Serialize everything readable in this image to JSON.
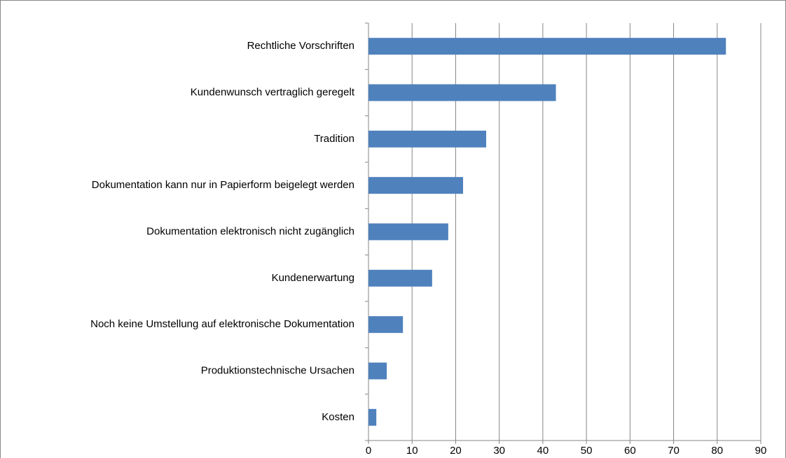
{
  "chart_data": {
    "type": "bar",
    "orientation": "horizontal",
    "categories": [
      "Rechtliche Vorschriften",
      "Kundenwunsch vertraglich geregelt",
      "Tradition",
      "Dokumentation kann nur in Papierform beigelegt werden",
      "Dokumentation elektronisch nicht zugänglich",
      "Kundenerwartung",
      "Noch keine Umstellung auf elektronische Dokumentation",
      "Produktionstechnische Ursachen",
      "Kosten"
    ],
    "values": [
      82,
      43,
      27,
      21.7,
      18.3,
      14.6,
      7.9,
      4.2,
      1.8
    ],
    "color": "#4f81bd",
    "xlim": [
      0,
      90
    ],
    "xticks": [
      0,
      10,
      20,
      30,
      40,
      50,
      60,
      70,
      80,
      90
    ],
    "grid": true
  }
}
